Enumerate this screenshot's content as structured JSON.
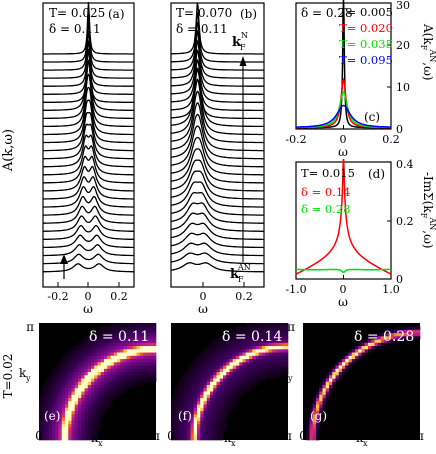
{
  "chart_data": [
    {
      "panel": "(a)",
      "type": "line",
      "ylabel": "A(k,ω)",
      "xlabel": "ω",
      "x_ticks": [
        "-0.2",
        "0",
        "0.2"
      ],
      "xlim": [
        -0.3,
        0.3
      ],
      "params": [
        "T= 0.025",
        "δ = 0.11"
      ],
      "curve_count": 28,
      "description_values": {
        "peak_near_kN_at_omega": 0.0,
        "split_peaks_near_kAN_at_omega": [
          -0.07,
          0.07
        ]
      }
    },
    {
      "panel": "(b)",
      "type": "line",
      "xlabel": "ω",
      "x_ticks": [
        "0",
        "0.2"
      ],
      "xlim": [
        -0.12,
        0.3
      ],
      "params": [
        "T= 0.070",
        "δ = 0.11"
      ],
      "label_top": "kF",
      "label_top_sup": "N",
      "label_bottom": "kF",
      "label_bottom_sup": "AN",
      "curve_count": 28
    },
    {
      "panel": "(c)",
      "type": "line",
      "xlabel": "ω",
      "ylabel": "A(kF^AN, ω)",
      "xlim": [
        -0.2,
        0.2
      ],
      "ylim": [
        0,
        30
      ],
      "x_ticks": [
        "-0.2",
        "0",
        "0.2"
      ],
      "y_ticks": [
        "0",
        "10",
        "20",
        "30"
      ],
      "params": [
        "δ = 0.28"
      ],
      "series": [
        {
          "name": "T= 0.005",
          "color": "#000000",
          "peak": 32.0,
          "width": 0.004
        },
        {
          "name": "T= 0.020",
          "color": "#ff0000",
          "peak": 11.5,
          "width": 0.013
        },
        {
          "name": "T= 0.035",
          "color": "#00dd00",
          "peak": 8.5,
          "width": 0.02
        },
        {
          "name": "T= 0.095",
          "color": "#0000ff",
          "peak": 5.3,
          "width": 0.035
        }
      ]
    },
    {
      "panel": "(d)",
      "type": "line",
      "xlabel": "ω",
      "ylabel": "-Im Σ(kF^AN, ω)",
      "xlim": [
        -1.0,
        1.0
      ],
      "ylim": [
        0,
        0.4
      ],
      "x_ticks": [
        "-1.0",
        "0",
        "1.0"
      ],
      "y_ticks": [
        "0",
        "0.2",
        "0.4"
      ],
      "params": [
        "T= 0.015"
      ],
      "series": [
        {
          "name": "δ = 0.14",
          "color": "#ff0000"
        },
        {
          "name": "δ = 0.28",
          "color": "#00dd00"
        }
      ]
    },
    {
      "type": "heatmap",
      "row_label": "T=0.02",
      "panels": [
        {
          "panel": "(e)",
          "delta": "δ = 0.11"
        },
        {
          "panel": "(f)",
          "delta": "δ = 0.14"
        },
        {
          "panel": "(g)",
          "delta": "δ = 0.28"
        }
      ],
      "xlabel": "kx",
      "ylabel": "ky",
      "x_ticks": [
        "0",
        "π"
      ],
      "y_ticks": [
        "π"
      ]
    }
  ],
  "texts": {
    "a_label": "(a)",
    "b_label": "(b)",
    "c_label": "(c)",
    "d_label": "(d)",
    "e_label": "(e)",
    "f_label": "(f)",
    "g_label": "(g)",
    "a_T": "T= 0.025",
    "a_d": "δ = 0.11",
    "b_T": "T= 0.070",
    "b_d": "δ = 0.11",
    "ylabel_left": "A(k,ω)",
    "omega": "ω",
    "k_main": "k",
    "k_sub": "F",
    "sup_N": "N",
    "sup_AN": "AN",
    "c_delta": "δ = 0.28",
    "c_T1": "T= 0.005",
    "c_T2": "T= 0.020",
    "c_T3": "T= 0.035",
    "c_T4": "T= 0.095",
    "c_ylabel": "A(k",
    "c_ylabel_end": ",ω)",
    "d_T": "T= 0.015",
    "d_d1": "δ = 0.14",
    "d_d2": "δ = 0.28",
    "d_ylabel": "-ImΣ(k",
    "d_ylabel_end": ",ω)",
    "heat_row": "T=0.02",
    "e_delta": "δ = 0.11",
    "f_delta": "δ = 0.14",
    "g_delta": "δ = 0.28",
    "kx": "k",
    "kx_sub": "x",
    "ky": "k",
    "ky_sub": "y",
    "pi": "π",
    "zero": "0",
    "ax_m02": "-0.2",
    "ax_0": "0",
    "ax_02": "0.2",
    "c_y0": "0",
    "c_y10": "10",
    "c_y20": "20",
    "c_y30": "30",
    "d_x_m1": "-1.0",
    "d_x_0": "0",
    "d_x_1": "1.0",
    "d_y0": "0",
    "d_y02": "0.2",
    "d_y04": "0.4"
  }
}
